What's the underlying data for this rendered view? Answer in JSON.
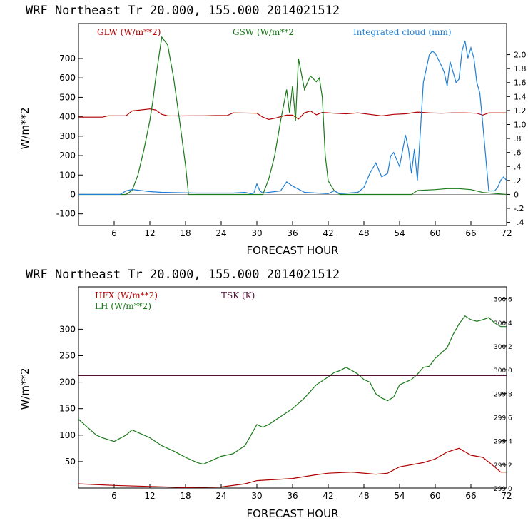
{
  "chart_data": [
    {
      "type": "line",
      "title": "WRF  Northeast Tr  20.000, 155.000  2014021512",
      "xlabel": "FORECAST HOUR",
      "ylabel": "W/m**2",
      "xlim": [
        0,
        72
      ],
      "ylim": [
        -160,
        880
      ],
      "y2lim": [
        -0.445,
        2.445
      ],
      "x_ticks": [
        6,
        12,
        18,
        24,
        30,
        36,
        42,
        48,
        54,
        60,
        66,
        72
      ],
      "y_ticks": [
        -100,
        0,
        100,
        200,
        300,
        400,
        500,
        600,
        700
      ],
      "y2_ticks": [
        -0.4,
        -0.2,
        0,
        0.2,
        0.4,
        0.6,
        0.8,
        1.0,
        1.2,
        1.4,
        1.6,
        1.8,
        2.0
      ],
      "y2_tick_labels": [
        "-.4",
        "-.2",
        "0",
        ".2",
        ".4",
        ".6",
        ".8",
        "1.0",
        "1.2",
        "1.4",
        "1.6",
        "1.8",
        "2.0"
      ],
      "series": [
        {
          "name": "GLW (W/m**2)",
          "color": "#b00000",
          "axis": "left",
          "x": [
            0,
            4,
            5,
            8,
            9,
            12,
            13,
            14,
            15,
            17,
            19,
            21,
            23,
            25,
            26,
            30,
            31,
            32,
            33,
            34,
            35,
            36,
            37,
            38,
            39,
            40,
            41,
            43,
            45,
            47,
            49,
            51,
            53,
            55,
            57,
            59,
            61,
            63,
            65,
            67,
            68,
            69,
            70,
            72
          ],
          "values": [
            398,
            398,
            405,
            405,
            430,
            440,
            435,
            412,
            405,
            404,
            405,
            405,
            406,
            406,
            420,
            418,
            398,
            386,
            392,
            400,
            408,
            408,
            388,
            420,
            430,
            410,
            422,
            418,
            415,
            420,
            412,
            404,
            412,
            415,
            424,
            420,
            418,
            420,
            420,
            418,
            408,
            420,
            420,
            420
          ]
        },
        {
          "name": "GSW (W/m**2",
          "color": "#1a7a1a",
          "axis": "left",
          "x": [
            0,
            8,
            9,
            10,
            11,
            12,
            12.5,
            13,
            14,
            15,
            16,
            17,
            18,
            18.5,
            31,
            32,
            33,
            34,
            35,
            35.5,
            36,
            36.5,
            37,
            37.5,
            38,
            39,
            40,
            40.5,
            41,
            41.5,
            42,
            43,
            44,
            56,
            57,
            60,
            62,
            64,
            66,
            68,
            72
          ],
          "values": [
            0,
            0,
            20,
            100,
            230,
            380,
            480,
            600,
            810,
            770,
            600,
            380,
            150,
            0,
            0,
            80,
            200,
            380,
            540,
            420,
            560,
            380,
            700,
            620,
            540,
            610,
            580,
            600,
            500,
            200,
            70,
            20,
            0,
            0,
            20,
            25,
            30,
            30,
            25,
            10,
            0
          ]
        },
        {
          "name": "Integrated cloud (mm)",
          "color": "#1f7fd4",
          "axis": "right",
          "x": [
            0,
            7,
            8,
            9,
            10,
            12,
            14,
            20,
            26,
            28,
            29,
            29.5,
            30,
            30.5,
            31,
            32,
            34,
            35,
            36,
            38,
            40,
            42,
            43,
            44,
            47,
            48,
            49,
            50,
            51,
            52,
            52.5,
            53,
            54,
            55,
            55.5,
            56,
            56.5,
            57,
            58,
            59,
            59.5,
            60,
            61,
            61.5,
            62,
            62.5,
            63,
            63.5,
            64,
            64.5,
            65,
            65.5,
            66,
            66.5,
            67,
            67.5,
            68,
            69,
            70,
            70.5,
            71,
            71.5,
            72
          ],
          "values": [
            0,
            0,
            0.05,
            0.07,
            0.06,
            0.04,
            0.03,
            0.02,
            0.02,
            0.03,
            0.01,
            0.02,
            0.15,
            0.05,
            0.02,
            0.03,
            0.05,
            0.18,
            0.12,
            0.03,
            0.02,
            0.01,
            0.05,
            0.01,
            0.03,
            0.1,
            0.3,
            0.45,
            0.25,
            0.3,
            0.55,
            0.6,
            0.4,
            0.85,
            0.65,
            0.3,
            0.65,
            0.2,
            1.6,
            2.0,
            2.05,
            2.02,
            1.85,
            1.75,
            1.55,
            1.9,
            1.75,
            1.6,
            1.65,
            2.05,
            2.2,
            1.95,
            2.1,
            1.95,
            1.6,
            1.45,
            1.0,
            0.05,
            0.05,
            0.1,
            0.2,
            0.25,
            0.2
          ]
        }
      ]
    },
    {
      "type": "line",
      "title": "WRF  Northeast Tr  20.000, 155.000  2014021512",
      "xlabel": "FORECAST HOUR",
      "ylabel": "W/m**2",
      "xlim": [
        0,
        72
      ],
      "ylim": [
        0,
        380
      ],
      "y2lim": [
        299.0,
        300.7
      ],
      "x_ticks": [
        6,
        12,
        18,
        24,
        30,
        36,
        42,
        48,
        54,
        60,
        66,
        72
      ],
      "y_ticks": [
        50,
        100,
        150,
        200,
        250,
        300
      ],
      "y2_ticks": [
        299.0,
        299.2,
        299.4,
        299.6,
        299.8,
        300.0,
        300.2,
        300.4,
        300.6
      ],
      "y2_tick_labels": [
        "299.0",
        "299.2",
        "299.4",
        "299.6",
        "299.8",
        "300.0",
        "300.2",
        "300.4",
        "300.6"
      ],
      "series": [
        {
          "name": "HFX (W/m**2)",
          "color": "#b00000",
          "axis": "left",
          "x": [
            0,
            6,
            12,
            18,
            24,
            28,
            30,
            36,
            40,
            42,
            46,
            50,
            52,
            54,
            58,
            60,
            62,
            64,
            66,
            68,
            70,
            71,
            72
          ],
          "values": [
            8,
            5,
            3,
            1,
            2,
            8,
            14,
            18,
            25,
            28,
            30,
            26,
            28,
            40,
            48,
            55,
            68,
            75,
            62,
            58,
            40,
            30,
            30
          ]
        },
        {
          "name": "LH  (W/m**2)",
          "color": "#1a7a1a",
          "axis": "left",
          "x": [
            0,
            1,
            2,
            3,
            4,
            6,
            8,
            9,
            10,
            12,
            14,
            16,
            18,
            20,
            21,
            22,
            24,
            26,
            28,
            29,
            30,
            31,
            32,
            34,
            36,
            38,
            40,
            42,
            43,
            44,
            45,
            46,
            47,
            48,
            49,
            50,
            51,
            52,
            53,
            54,
            55,
            56,
            57,
            58,
            59,
            60,
            61,
            62,
            63,
            64,
            65,
            66,
            67,
            68,
            69,
            70,
            71,
            72
          ],
          "values": [
            130,
            120,
            110,
            100,
            95,
            88,
            100,
            110,
            105,
            95,
            80,
            70,
            58,
            48,
            45,
            50,
            60,
            65,
            80,
            100,
            120,
            115,
            120,
            135,
            150,
            170,
            195,
            210,
            218,
            222,
            228,
            222,
            215,
            205,
            200,
            178,
            170,
            165,
            172,
            195,
            200,
            205,
            215,
            228,
            230,
            245,
            255,
            265,
            290,
            310,
            325,
            318,
            315,
            318,
            322,
            312,
            305,
            305
          ]
        },
        {
          "name": "TSK (K)",
          "color": "#5a0f3a",
          "axis": "right",
          "x": [
            0,
            72
          ],
          "values": [
            299.95,
            299.95
          ]
        }
      ]
    }
  ]
}
